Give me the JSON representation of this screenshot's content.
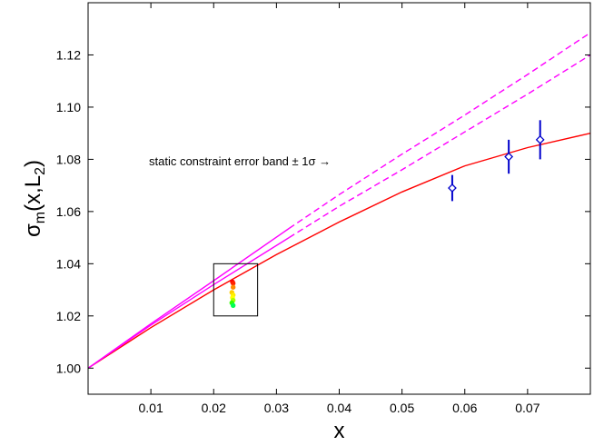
{
  "chart_data": {
    "type": "line",
    "xlabel": "x",
    "ylabel": {
      "main": "σ",
      "sub_main": "m",
      "open": "(x,L",
      "sub_L": "2",
      "close": ")"
    },
    "xlim": [
      0.0,
      0.08
    ],
    "ylim": [
      0.99,
      1.14
    ],
    "xticks": [
      0.01,
      0.02,
      0.03,
      0.04,
      0.05,
      0.06,
      0.07
    ],
    "xtick_labels": [
      "0.01",
      "0.02",
      "0.03",
      "0.04",
      "0.05",
      "0.06",
      "0.07"
    ],
    "yticks": [
      1.0,
      1.02,
      1.04,
      1.06,
      1.08,
      1.1,
      1.12
    ],
    "ytick_labels": [
      "1.00",
      "1.02",
      "1.04",
      "1.06",
      "1.08",
      "1.10",
      "1.12"
    ],
    "grid": false,
    "annotation": "static constraint error band ± 1σ →",
    "colors": {
      "red": "#ff0000",
      "magenta": "#ff00ff",
      "blue": "#0000cc",
      "box": "#000000"
    },
    "series": [
      {
        "style": "solid",
        "color": "#ff0000",
        "x": [
          0.0,
          0.01,
          0.02,
          0.03,
          0.04,
          0.05,
          0.06,
          0.07,
          0.08
        ],
        "y": [
          1.0,
          1.0155,
          1.03,
          1.0435,
          1.056,
          1.0675,
          1.0775,
          1.0845,
          1.09
        ]
      },
      {
        "style": "solid",
        "color": "#ff00ff",
        "x": [
          0.0,
          0.01,
          0.02,
          0.032
        ],
        "y": [
          1.0,
          1.017,
          1.0335,
          1.0535
        ]
      },
      {
        "style": "dashed",
        "color": "#ff00ff",
        "x": [
          0.032,
          0.04,
          0.05,
          0.06,
          0.07,
          0.08
        ],
        "y": [
          1.0535,
          1.0665,
          1.082,
          1.097,
          1.1125,
          1.1285
        ]
      },
      {
        "style": "solid",
        "color": "#ff00ff",
        "x": [
          0.0,
          0.01,
          0.02,
          0.032
        ],
        "y": [
          1.0,
          1.0165,
          1.032,
          1.05
        ]
      },
      {
        "style": "dashed",
        "color": "#ff00ff",
        "x": [
          0.032,
          0.04,
          0.05,
          0.06,
          0.07,
          0.08
        ],
        "y": [
          1.05,
          1.062,
          1.076,
          1.0905,
          1.105,
          1.12
        ]
      }
    ],
    "error_points": [
      {
        "x": 0.058,
        "y": 1.069,
        "err": 0.005,
        "color": "#0000cc"
      },
      {
        "x": 0.067,
        "y": 1.081,
        "err": 0.0065,
        "color": "#0000cc"
      },
      {
        "x": 0.072,
        "y": 1.0875,
        "err": 0.0075,
        "color": "#0000cc"
      }
    ],
    "inset_box": {
      "x0": 0.02,
      "x1": 0.027,
      "y0": 1.02,
      "y1": 1.04
    },
    "cluster_points": [
      {
        "x": 0.023,
        "y": 1.033,
        "color": "#ff0000"
      },
      {
        "x": 0.0231,
        "y": 1.0325,
        "color": "#ff2200"
      },
      {
        "x": 0.0231,
        "y": 1.031,
        "color": "#ff8800"
      },
      {
        "x": 0.0229,
        "y": 1.029,
        "color": "#ffcc00"
      },
      {
        "x": 0.0231,
        "y": 1.028,
        "color": "#ffee00"
      },
      {
        "x": 0.023,
        "y": 1.027,
        "color": "#ffff00"
      },
      {
        "x": 0.0231,
        "y": 1.026,
        "color": "#aaff00"
      },
      {
        "x": 0.0229,
        "y": 1.025,
        "color": "#33ff00"
      },
      {
        "x": 0.0231,
        "y": 1.024,
        "color": "#00ff55"
      }
    ]
  }
}
